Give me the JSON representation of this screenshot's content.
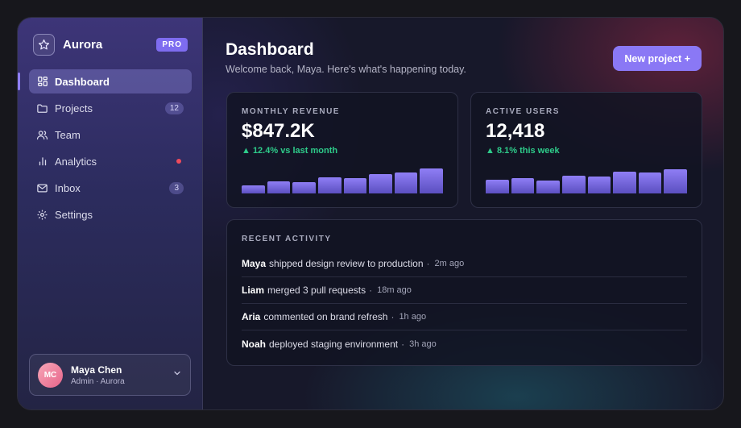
{
  "app": {
    "name": "Aurora",
    "badge": "PRO"
  },
  "sidebar": {
    "items": [
      {
        "label": "Dashboard",
        "icon": "grid-icon",
        "active": true
      },
      {
        "label": "Projects",
        "icon": "folder-icon",
        "count": "12"
      },
      {
        "label": "Team",
        "icon": "users-icon"
      },
      {
        "label": "Analytics",
        "icon": "bar-chart-icon",
        "dot": true
      },
      {
        "label": "Inbox",
        "icon": "mail-icon",
        "count": "3"
      },
      {
        "label": "Settings",
        "icon": "gear-icon"
      }
    ]
  },
  "profile": {
    "initials": "MC",
    "name": "Maya Chen",
    "role": "Admin · Aurora"
  },
  "header": {
    "title": "Dashboard",
    "subtitle": "Welcome back, Maya. Here's what's happening today.",
    "new_project_label": "New project +"
  },
  "revenue": {
    "label": "MONTHLY REVENUE",
    "value": "$847.2K",
    "delta": "▲ 12.4% vs last month"
  },
  "users": {
    "label": "ACTIVE USERS",
    "value": "12,418",
    "delta": "▲ 8.1% this week"
  },
  "chart_data": [
    {
      "type": "bar",
      "title": "",
      "categories": [
        "1",
        "2",
        "3",
        "4",
        "5",
        "6",
        "7",
        "8"
      ],
      "values": [
        30,
        45,
        42,
        58,
        55,
        70,
        77,
        92
      ],
      "ylim": [
        0,
        100
      ]
    },
    {
      "type": "bar",
      "title": "",
      "categories": [
        "1",
        "2",
        "3",
        "4",
        "5",
        "6",
        "7",
        "8"
      ],
      "values": [
        50,
        55,
        48,
        65,
        62,
        78,
        75,
        88
      ],
      "ylim": [
        0,
        100
      ]
    }
  ],
  "activity": {
    "label": "RECENT ACTIVITY",
    "items": [
      {
        "user": "Maya",
        "action": "shipped design review to production",
        "time": "2m ago"
      },
      {
        "user": "Liam",
        "action": "merged 3 pull requests",
        "time": "18m ago"
      },
      {
        "user": "Aria",
        "action": "commented on brand refresh",
        "time": "1h ago"
      },
      {
        "user": "Noah",
        "action": "deployed staging environment",
        "time": "3h ago"
      }
    ]
  },
  "colors": {
    "accent": "#8a78f5",
    "positive": "#2ecb8a",
    "alert": "#f04b5c"
  }
}
